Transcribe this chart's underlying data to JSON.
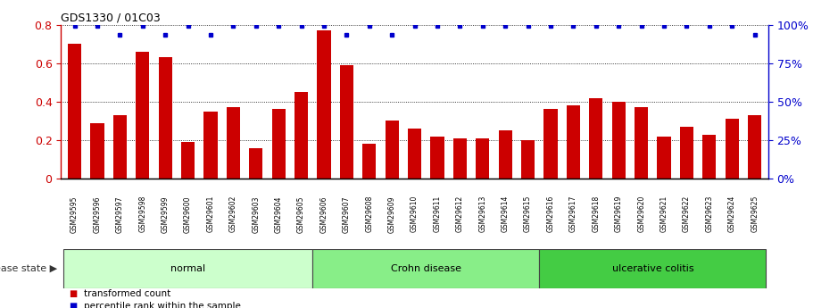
{
  "title": "GDS1330 / 01C03",
  "samples": [
    "GSM29595",
    "GSM29596",
    "GSM29597",
    "GSM29598",
    "GSM29599",
    "GSM29600",
    "GSM29601",
    "GSM29602",
    "GSM29603",
    "GSM29604",
    "GSM29605",
    "GSM29606",
    "GSM29607",
    "GSM29608",
    "GSM29609",
    "GSM29610",
    "GSM29611",
    "GSM29612",
    "GSM29613",
    "GSM29614",
    "GSM29615",
    "GSM29616",
    "GSM29617",
    "GSM29618",
    "GSM29619",
    "GSM29620",
    "GSM29621",
    "GSM29622",
    "GSM29623",
    "GSM29624",
    "GSM29625"
  ],
  "bar_values": [
    0.7,
    0.29,
    0.33,
    0.66,
    0.63,
    0.19,
    0.35,
    0.37,
    0.16,
    0.36,
    0.45,
    0.77,
    0.59,
    0.18,
    0.3,
    0.26,
    0.22,
    0.21,
    0.21,
    0.25,
    0.2,
    0.36,
    0.38,
    0.42,
    0.4,
    0.37,
    0.22,
    0.27,
    0.23,
    0.31,
    0.33
  ],
  "pct_high": [
    true,
    true,
    false,
    true,
    false,
    true,
    false,
    true,
    true,
    true,
    true,
    true,
    false,
    true,
    false,
    true,
    true,
    true,
    true,
    true,
    true,
    true,
    true,
    true,
    true,
    true,
    true,
    true,
    true,
    true,
    false
  ],
  "groups": [
    {
      "label": "normal",
      "start": 0,
      "end": 11,
      "color": "#ccffcc"
    },
    {
      "label": "Crohn disease",
      "start": 11,
      "end": 21,
      "color": "#88ee88"
    },
    {
      "label": "ulcerative colitis",
      "start": 21,
      "end": 31,
      "color": "#44cc44"
    }
  ],
  "bar_color": "#cc0000",
  "percentile_color": "#0000cc",
  "ylim_left": [
    0,
    0.8
  ],
  "ylim_right": [
    0,
    100
  ],
  "yticks_left": [
    0,
    0.2,
    0.4,
    0.6,
    0.8
  ],
  "yticks_right": [
    0,
    25,
    50,
    75,
    100
  ],
  "legend_items": [
    {
      "label": "transformed count",
      "color": "#cc0000"
    },
    {
      "label": "percentile rank within the sample",
      "color": "#0000cc"
    }
  ],
  "disease_state_label": "disease state",
  "figsize": [
    9.11,
    3.45
  ],
  "dpi": 100
}
